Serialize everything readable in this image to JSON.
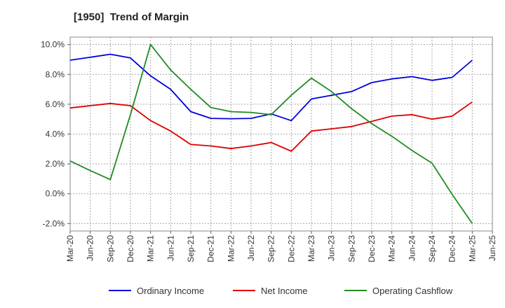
{
  "chart_data": {
    "type": "line",
    "title": "[1950]  Trend of Margin",
    "xlabel": "",
    "ylabel": "",
    "categories": [
      "Mar-20",
      "Jun-20",
      "Sep-20",
      "Dec-20",
      "Mar-21",
      "Jun-21",
      "Sep-21",
      "Dec-21",
      "Mar-22",
      "Jun-22",
      "Sep-22",
      "Dec-22",
      "Mar-23",
      "Jun-23",
      "Sep-23",
      "Dec-23",
      "Mar-24",
      "Jun-24",
      "Sep-24",
      "Dec-24",
      "Mar-25",
      "Jun-25"
    ],
    "ylim": [
      -2.5,
      10.5
    ],
    "yticks": [
      -2.0,
      0.0,
      2.0,
      4.0,
      6.0,
      8.0,
      10.0
    ],
    "ytick_labels": [
      "-2.0%",
      "0.0%",
      "2.0%",
      "4.0%",
      "6.0%",
      "8.0%",
      "10.0%"
    ],
    "grid": true,
    "legend_position": "bottom",
    "series": [
      {
        "name": "Ordinary Income",
        "color": "#0000dd",
        "values": [
          8.95,
          9.15,
          9.35,
          9.1,
          7.9,
          7.0,
          5.5,
          5.05,
          5.03,
          5.05,
          5.35,
          4.9,
          6.35,
          6.6,
          6.85,
          7.45,
          7.7,
          7.85,
          7.6,
          7.8,
          8.95,
          null
        ]
      },
      {
        "name": "Net Income",
        "color": "#dd0000",
        "values": [
          5.75,
          5.9,
          6.05,
          5.9,
          4.9,
          4.2,
          3.3,
          3.2,
          3.03,
          3.2,
          3.43,
          2.85,
          4.2,
          4.35,
          4.5,
          4.85,
          5.2,
          5.3,
          5.0,
          5.2,
          6.15,
          null
        ]
      },
      {
        "name": "Operating Cashflow",
        "color": "#228B22",
        "values": [
          2.2,
          1.55,
          0.95,
          5.3,
          10.0,
          8.3,
          7.0,
          5.78,
          5.5,
          5.45,
          5.3,
          6.6,
          7.75,
          6.85,
          5.7,
          4.7,
          3.85,
          2.9,
          2.05,
          -0.05,
          -2.0,
          null
        ]
      }
    ]
  }
}
